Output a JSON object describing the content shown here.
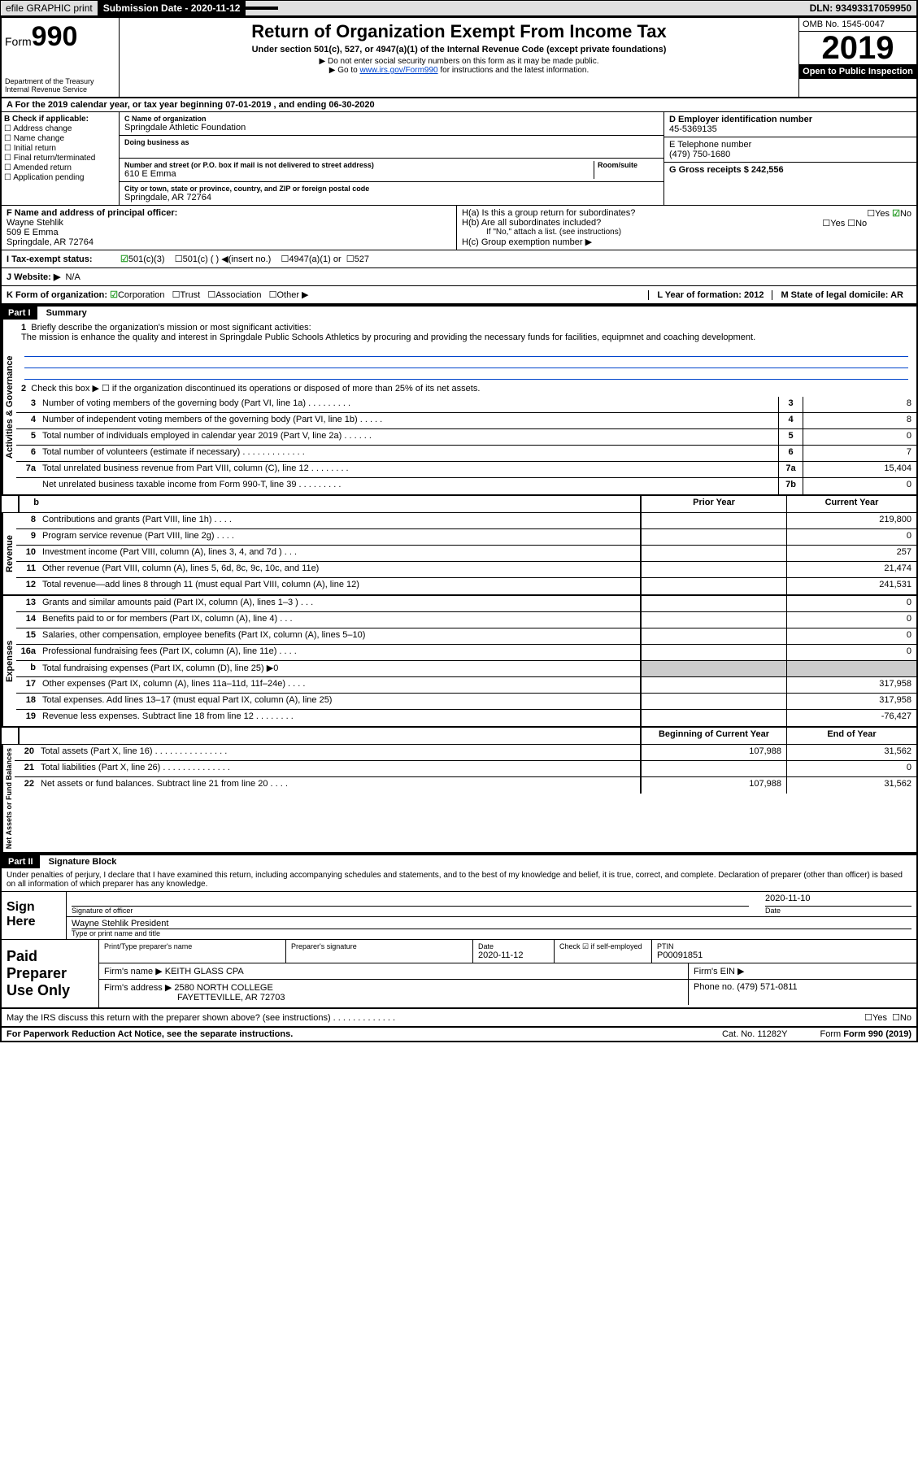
{
  "topbar": {
    "efile": "efile GRAPHIC print",
    "subdate_lbl": "Submission Date - 2020-11-12",
    "dln": "DLN: 93493317059950"
  },
  "header": {
    "form_word": "Form",
    "form_num": "990",
    "dept": "Department of the Treasury\nInternal Revenue Service",
    "title": "Return of Organization Exempt From Income Tax",
    "sub1": "Under section 501(c), 527, or 4947(a)(1) of the Internal Revenue Code (except private foundations)",
    "sub2": "▶ Do not enter social security numbers on this form as it may be made public.",
    "sub3_pre": "▶ Go to ",
    "sub3_link": "www.irs.gov/Form990",
    "sub3_post": " for instructions and the latest information.",
    "omb": "OMB No. 1545-0047",
    "year": "2019",
    "otp": "Open to Public Inspection"
  },
  "rowA": "A For the 2019 calendar year, or tax year beginning 07-01-2019   , and ending 06-30-2020",
  "colB": {
    "lbl": "B Check if applicable:",
    "items": [
      "Address change",
      "Name change",
      "Initial return",
      "Final return/terminated",
      "Amended return",
      "Application pending"
    ]
  },
  "colC": {
    "name_lbl": "C Name of organization",
    "name": "Springdale Athletic Foundation",
    "dba_lbl": "Doing business as",
    "addr_lbl": "Number and street (or P.O. box if mail is not delivered to street address)",
    "room_lbl": "Room/suite",
    "addr": "610 E Emma",
    "city_lbl": "City or town, state or province, country, and ZIP or foreign postal code",
    "city": "Springdale, AR  72764"
  },
  "colD": {
    "lbl": "D Employer identification number",
    "val": "45-5369135"
  },
  "colE": {
    "lbl": "E Telephone number",
    "val": "(479) 750-1680"
  },
  "colG": {
    "lbl": "G Gross receipts $ 242,556"
  },
  "rowF": {
    "lbl": "F  Name and address of principal officer:",
    "name": "Wayne Stehlik",
    "addr1": "509 E Emma",
    "addr2": "Springdale, AR  72764"
  },
  "rowH": {
    "a": "H(a)  Is this a group return for subordinates?",
    "b": "H(b)  Are all subordinates included?",
    "bnote": "If \"No,\" attach a list. (see instructions)",
    "c": "H(c)  Group exemption number ▶"
  },
  "rowI": {
    "lbl": "I  Tax-exempt status:",
    "o1": "501(c)(3)",
    "o2": "501(c) (  ) ◀(insert no.)",
    "o3": "4947(a)(1) or",
    "o4": "527"
  },
  "rowJ": {
    "lbl": "J  Website: ▶",
    "val": "N/A"
  },
  "rowK": {
    "lbl": "K Form of organization:",
    "o1": "Corporation",
    "o2": "Trust",
    "o3": "Association",
    "o4": "Other ▶"
  },
  "rowL": {
    "lbl": "L Year of formation: 2012"
  },
  "rowM": {
    "lbl": "M State of legal domicile: AR"
  },
  "part1": {
    "hdr": "Part I",
    "title": "Summary"
  },
  "activities": {
    "vlabel": "Activities & Governance",
    "l1": "Briefly describe the organization's mission or most significant activities:",
    "l1text": "The mission is enhance the quality and interest in Springdale Public Schools Athletics by procuring and providing the necessary funds for facilities, equipmnet and coaching development.",
    "l2": "Check this box ▶ ☐  if the organization discontinued its operations or disposed of more than 25% of its net assets.",
    "rows": [
      {
        "n": "3",
        "t": "Number of voting members of the governing body (Part VI, line 1a)  .   .   .   .   .   .   .   .   .",
        "b": "3",
        "v": "8"
      },
      {
        "n": "4",
        "t": "Number of independent voting members of the governing body (Part VI, line 1b)  .   .   .   .   .",
        "b": "4",
        "v": "8"
      },
      {
        "n": "5",
        "t": "Total number of individuals employed in calendar year 2019 (Part V, line 2a)  .   .   .   .   .   .",
        "b": "5",
        "v": "0"
      },
      {
        "n": "6",
        "t": "Total number of volunteers (estimate if necessary)   .   .   .   .   .   .   .   .   .   .   .   .   .",
        "b": "6",
        "v": "7"
      },
      {
        "n": "7a",
        "t": "Total unrelated business revenue from Part VIII, column (C), line 12  .   .   .   .   .   .   .   .",
        "b": "7a",
        "v": "15,404"
      },
      {
        "n": "",
        "t": "Net unrelated business taxable income from Form 990-T, line 39   .   .   .   .   .   .   .   .   .",
        "b": "7b",
        "v": "0"
      }
    ]
  },
  "pycy": {
    "prior": "Prior Year",
    "current": "Current Year"
  },
  "revenue": {
    "vlabel": "Revenue",
    "rows": [
      {
        "n": "8",
        "t": "Contributions and grants (Part VIII, line 1h)   .   .   .   .",
        "p": "",
        "c": "219,800"
      },
      {
        "n": "9",
        "t": "Program service revenue (Part VIII, line 2g)   .   .   .   .",
        "p": "",
        "c": "0"
      },
      {
        "n": "10",
        "t": "Investment income (Part VIII, column (A), lines 3, 4, and 7d )   .   .   .",
        "p": "",
        "c": "257"
      },
      {
        "n": "11",
        "t": "Other revenue (Part VIII, column (A), lines 5, 6d, 8c, 9c, 10c, and 11e)",
        "p": "",
        "c": "21,474"
      },
      {
        "n": "12",
        "t": "Total revenue—add lines 8 through 11 (must equal Part VIII, column (A), line 12)",
        "p": "",
        "c": "241,531"
      }
    ]
  },
  "expenses": {
    "vlabel": "Expenses",
    "rows": [
      {
        "n": "13",
        "t": "Grants and similar amounts paid (Part IX, column (A), lines 1–3 )   .   .   .",
        "p": "",
        "c": "0"
      },
      {
        "n": "14",
        "t": "Benefits paid to or for members (Part IX, column (A), line 4)   .   .   .",
        "p": "",
        "c": "0"
      },
      {
        "n": "15",
        "t": "Salaries, other compensation, employee benefits (Part IX, column (A), lines 5–10)",
        "p": "",
        "c": "0"
      },
      {
        "n": "16a",
        "t": "Professional fundraising fees (Part IX, column (A), line 11e)   .   .   .   .",
        "p": "",
        "c": "0"
      },
      {
        "n": "b",
        "t": "Total fundraising expenses (Part IX, column (D), line 25) ▶0",
        "shaded": true
      },
      {
        "n": "17",
        "t": "Other expenses (Part IX, column (A), lines 11a–11d, 11f–24e)   .   .   .   .",
        "p": "",
        "c": "317,958"
      },
      {
        "n": "18",
        "t": "Total expenses. Add lines 13–17 (must equal Part IX, column (A), line 25)",
        "p": "",
        "c": "317,958"
      },
      {
        "n": "19",
        "t": "Revenue less expenses. Subtract line 18 from line 12 .   .   .   .   .   .   .   .",
        "p": "",
        "c": "-76,427"
      }
    ]
  },
  "netassets": {
    "vlabel": "Net Assets or Fund Balances",
    "bh": "Beginning of Current Year",
    "eh": "End of Year",
    "rows": [
      {
        "n": "20",
        "t": "Total assets (Part X, line 16)  .   .   .   .   .   .   .   .   .   .   .   .   .   .   .",
        "p": "107,988",
        "c": "31,562"
      },
      {
        "n": "21",
        "t": "Total liabilities (Part X, line 26) .   .   .   .   .   .   .   .   .   .   .   .   .   .",
        "p": "",
        "c": "0"
      },
      {
        "n": "22",
        "t": "Net assets or fund balances. Subtract line 21 from line 20  .   .   .   .",
        "p": "107,988",
        "c": "31,562"
      }
    ]
  },
  "part2": {
    "hdr": "Part II",
    "title": "Signature Block"
  },
  "sig": {
    "perjury": "Under penalties of perjury, I declare that I have examined this return, including accompanying schedules and statements, and to the best of my knowledge and belief, it is true, correct, and complete. Declaration of preparer (other than officer) is based on all information of which preparer has any knowledge.",
    "here": "Sign Here",
    "sigoff": "Signature of officer",
    "date_lbl": "Date",
    "date": "2020-11-10",
    "name": "Wayne Stehlik  President",
    "name_lbl": "Type or print name and title"
  },
  "prep": {
    "label": "Paid Preparer Use Only",
    "h1": "Print/Type preparer's name",
    "h2": "Preparer's signature",
    "h3": "Date",
    "h3v": "2020-11-12",
    "h4": "Check ☑ if self-employed",
    "h5": "PTIN",
    "h5v": "P00091851",
    "firm_lbl": "Firm's name   ▶",
    "firm": "KEITH GLASS CPA",
    "ein_lbl": "Firm's EIN ▶",
    "addr_lbl": "Firm's address ▶",
    "addr1": "2580 NORTH COLLEGE",
    "addr2": "FAYETTEVILLE, AR  72703",
    "phone_lbl": "Phone no. (479) 571-0811"
  },
  "discuss": "May the IRS discuss this return with the preparer shown above? (see instructions)   .   .   .   .   .   .   .   .   .   .   .   .   .",
  "footer": {
    "pra": "For Paperwork Reduction Act Notice, see the separate instructions.",
    "cat": "Cat. No. 11282Y",
    "form": "Form 990 (2019)"
  }
}
